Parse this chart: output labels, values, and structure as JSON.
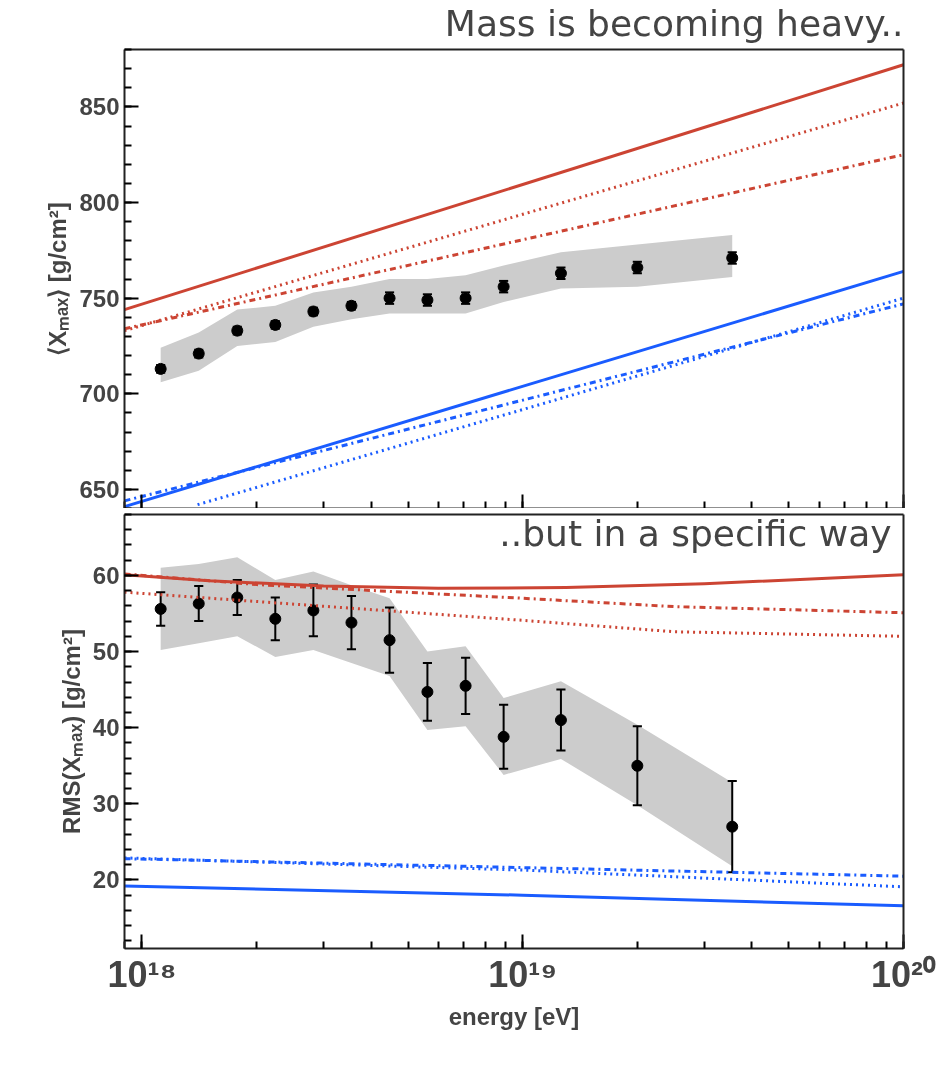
{
  "chart_data": [
    {
      "type": "line",
      "log": "x",
      "title": "Mass is becoming heavy..",
      "ylabel": "⟨Xₘₐₓ⟩ [g/cm²]",
      "x": [
        1.12e+18,
        1.41e+18,
        1.78e+18,
        2.24e+18,
        2.82e+18,
        3.55e+18,
        4.47e+18,
        5.62e+18,
        7.08e+18,
        8.91e+18,
        1.26e+19,
        2e+19,
        3.55e+19
      ],
      "xlim": [
        9e+17,
        1e+20
      ],
      "xticks": [
        {
          "value": 1e+18,
          "label": null
        },
        {
          "value": 1e+19,
          "label": null
        },
        {
          "value": 1e+20,
          "label": null
        }
      ],
      "ylim": [
        640,
        880
      ],
      "yticks": [
        650,
        700,
        750,
        800,
        850
      ],
      "tick_labels": "y",
      "grid": false,
      "series": [
        {
          "type": "scatter",
          "color": "#000000",
          "marker": "circle",
          "values": [
            713,
            721,
            733,
            736,
            743,
            746,
            750,
            749,
            750,
            756,
            763,
            766,
            771
          ],
          "errors": [
            2,
            2,
            2,
            2,
            2,
            2,
            3,
            3,
            3,
            3,
            3,
            3,
            3
          ],
          "lower": [
            706,
            712,
            725,
            727,
            735,
            739,
            742,
            742,
            742,
            748,
            755,
            756,
            761
          ],
          "upper": [
            724,
            732,
            744,
            746,
            753,
            756,
            760,
            760,
            762,
            767,
            774,
            778,
            783
          ]
        },
        {
          "color": "#cc4433",
          "line_style": "solid",
          "x": [
            9e+17,
            1e+20
          ],
          "values": [
            744,
            872
          ]
        },
        {
          "color": "#cc4433",
          "line_style": "dotted",
          "x": [
            9e+17,
            1e+20
          ],
          "values": [
            733,
            852
          ]
        },
        {
          "color": "#cc4433",
          "line_style": "dashdot",
          "x": [
            9e+17,
            1e+20
          ],
          "values": [
            734,
            825
          ]
        },
        {
          "color": "#1a5cff",
          "line_style": "solid",
          "x": [
            9e+17,
            1e+20
          ],
          "values": [
            641,
            764
          ]
        },
        {
          "color": "#1a5cff",
          "line_style": "dashdot",
          "x": [
            9e+17,
            1e+20
          ],
          "values": [
            644,
            747
          ]
        },
        {
          "color": "#1a5cff",
          "line_style": "dotted",
          "x": [
            1.4e+18,
            1e+20
          ],
          "values": [
            642,
            750
          ]
        }
      ]
    },
    {
      "type": "line",
      "log": "x",
      "xlabel": "energy [eV]",
      "ylabel": "RMS(Xₘₐₓ) [g/cm²]",
      "annotations": [
        "..but in a specific way"
      ],
      "x": [
        1.12e+18,
        1.41e+18,
        1.78e+18,
        2.24e+18,
        2.82e+18,
        3.55e+18,
        4.47e+18,
        5.62e+18,
        7.08e+18,
        8.91e+18,
        1.26e+19,
        2e+19,
        3.55e+19
      ],
      "xlim": [
        9e+17,
        1e+20
      ],
      "xticks": [
        {
          "value": 1e+18,
          "label": "10¹⁸"
        },
        {
          "value": 1e+19,
          "label": "10¹⁹"
        },
        {
          "value": 1e+20,
          "label": "10²⁰"
        }
      ],
      "ylim": [
        11,
        68
      ],
      "yticks": [
        20,
        30,
        40,
        50,
        60
      ],
      "grid": false,
      "series": [
        {
          "type": "scatter",
          "color": "#000000",
          "marker": "circle",
          "values": [
            55.6,
            56.3,
            57.1,
            54.3,
            55.4,
            53.8,
            51.5,
            44.7,
            45.5,
            38.8,
            41.0,
            35.0,
            27.0
          ],
          "errors": [
            2.2,
            2.3,
            2.3,
            2.8,
            3.4,
            3.5,
            4.3,
            3.8,
            3.7,
            4.2,
            4.0,
            5.2,
            6.0
          ],
          "lower": [
            50.2,
            51.1,
            52.0,
            49.3,
            50.2,
            48.5,
            46.8,
            39.7,
            40.2,
            33.8,
            35.9,
            29.8,
            21.8
          ],
          "upper": [
            61.0,
            61.5,
            62.4,
            59.4,
            60.5,
            58.7,
            57.0,
            50.0,
            50.7,
            43.9,
            46.1,
            40.4,
            32.8
          ]
        },
        {
          "color": "#cc4433",
          "line_style": "solid",
          "x": [
            9e+17,
            1.5e+18,
            3e+18,
            6e+18,
            1.3e+19,
            3e+19,
            1e+20
          ],
          "values": [
            60.1,
            59.3,
            58.6,
            58.3,
            58.4,
            58.9,
            60.1
          ]
        },
        {
          "color": "#cc4433",
          "line_style": "dashdot",
          "x": [
            9e+17,
            2e+18,
            1e+19,
            2.5e+19,
            1e+20
          ],
          "values": [
            60.2,
            58.8,
            57.0,
            55.9,
            55.1
          ]
        },
        {
          "color": "#cc4433",
          "line_style": "dotted",
          "x": [
            9e+17,
            1e+19,
            2.5e+19,
            1e+20
          ],
          "values": [
            57.8,
            54.1,
            52.6,
            52.0
          ]
        },
        {
          "color": "#1a5cff",
          "line_style": "solid",
          "x": [
            9e+17,
            1e+19,
            1e+20
          ],
          "values": [
            19.2,
            18.0,
            16.6
          ]
        },
        {
          "color": "#1a5cff",
          "line_style": "dashdot",
          "x": [
            9e+17,
            1e+20
          ],
          "values": [
            22.8,
            20.5
          ]
        },
        {
          "color": "#1a5cff",
          "line_style": "dotted",
          "x": [
            9e+17,
            1e+19,
            1e+20
          ],
          "values": [
            22.9,
            21.3,
            19.1
          ]
        }
      ]
    }
  ]
}
